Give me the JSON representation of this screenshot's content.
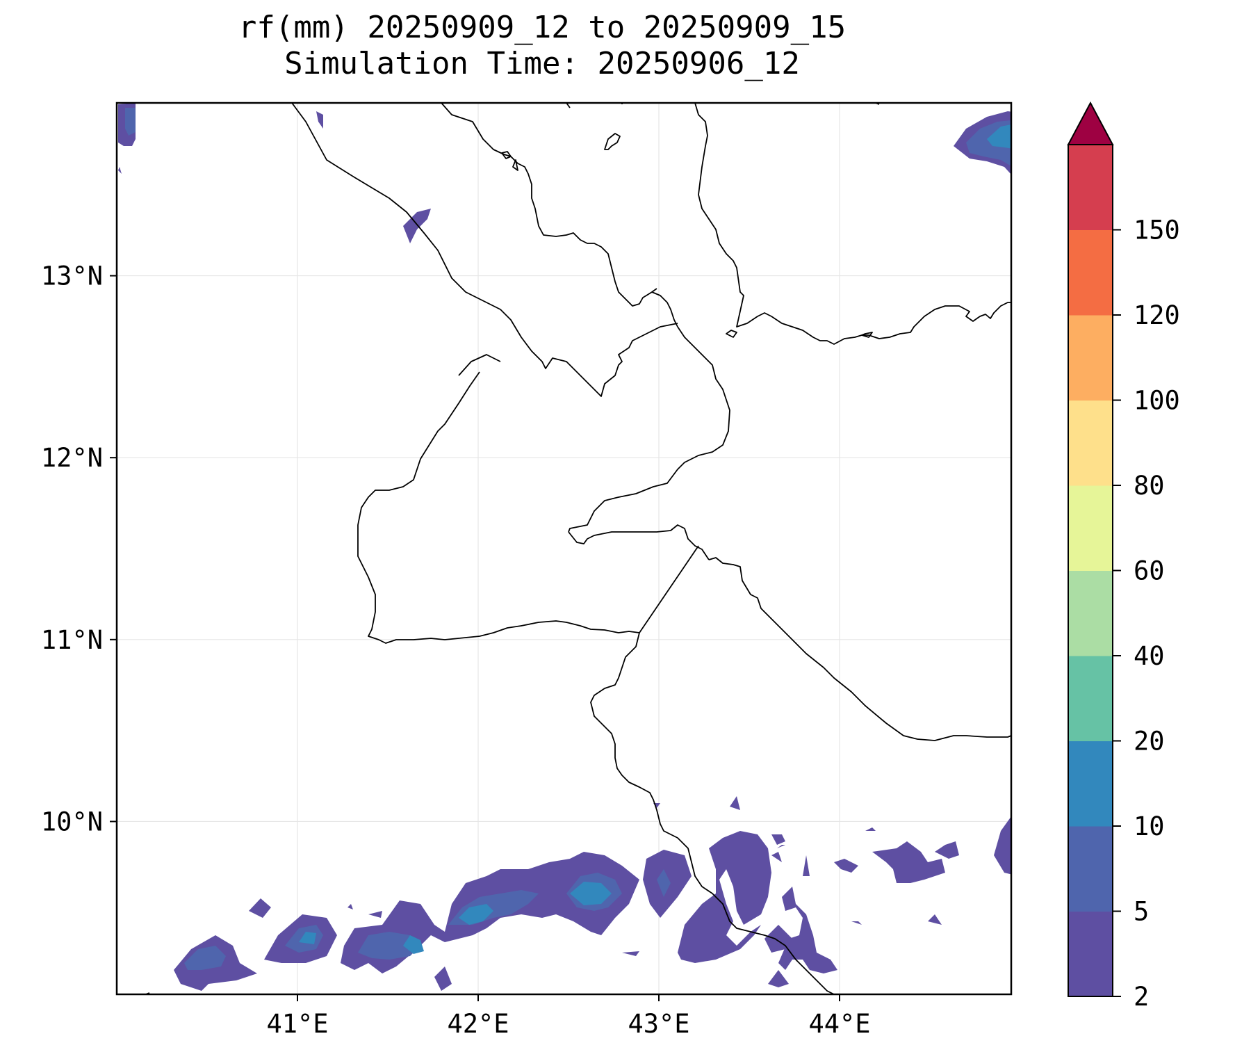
{
  "title": {
    "line1": "rf(mm) 20250909_12 to 20250909_15",
    "line2": "Simulation Time: 20250906_12"
  },
  "map": {
    "lon_range": [
      40.0,
      44.95
    ],
    "lat_range": [
      9.05,
      13.95
    ],
    "x_ticks": [
      {
        "value": 41,
        "label": "41°E"
      },
      {
        "value": 42,
        "label": "42°E"
      },
      {
        "value": 43,
        "label": "43°E"
      },
      {
        "value": 44,
        "label": "44°E"
      }
    ],
    "y_ticks": [
      {
        "value": 13,
        "label": "13°N"
      },
      {
        "value": 12,
        "label": "12°N"
      },
      {
        "value": 11,
        "label": "11°N"
      },
      {
        "value": 10,
        "label": "10°N"
      }
    ],
    "grid": true
  },
  "colorbar": {
    "levels": [
      "2",
      "5",
      "10",
      "20",
      "40",
      "60",
      "80",
      "100",
      "120",
      "150"
    ],
    "colors": [
      "#5e4fa2",
      "#4f65ad",
      "#3288bd",
      "#66c2a5",
      "#abdda4",
      "#e6f598",
      "#fee08b",
      "#fdae61",
      "#f46d43",
      "#d53e4f"
    ],
    "extend_color": "#9e0142",
    "extend": "max"
  },
  "colors": {
    "rain_2_5": "#5e4fa2",
    "rain_5_10": "#4f65ad",
    "rain_10_20": "#3288bd",
    "rain_20_40": "#66c2a5",
    "coastline": "#000000",
    "gridline": "#e6e6e6"
  }
}
